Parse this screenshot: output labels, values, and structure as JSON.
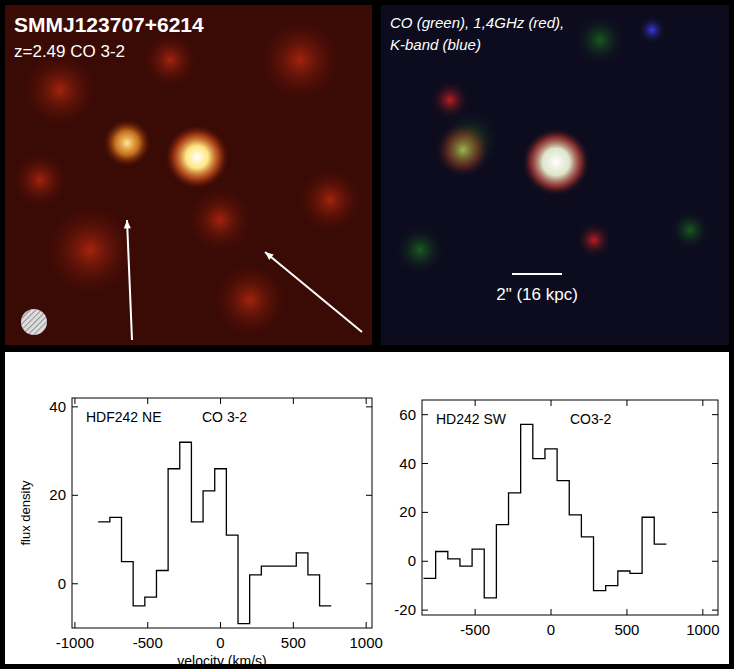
{
  "images": {
    "left": {
      "title": "SMMJ123707+6214",
      "subtitle": "z=2.49 CO 3-2"
    },
    "right": {
      "title": "CO (green), 1,4GHz (red),",
      "subtitle": "K-band (blue)",
      "scale_label": "2\" (16 kpc)"
    }
  },
  "chart_data": [
    {
      "type": "line",
      "line_style": "steps",
      "title": "HDF242 NE",
      "subtitle": "CO 3-2",
      "xlabel": "velocity (km/s)",
      "ylabel": "flux density",
      "x": [
        -800,
        -720,
        -640,
        -560,
        -480,
        -400,
        -320,
        -240,
        -160,
        -80,
        0,
        80,
        160,
        240,
        320,
        400,
        480,
        560,
        640,
        720
      ],
      "values": [
        14,
        15,
        5,
        -5,
        -3,
        3,
        26,
        32,
        14,
        21,
        26,
        11,
        -9,
        2,
        4,
        4,
        4,
        7,
        2,
        -5
      ],
      "color": "#000000",
      "xlim": [
        -1020,
        1040
      ],
      "xticks": [
        -1000,
        -500,
        0,
        500,
        1000
      ],
      "ylim": [
        -10,
        42
      ],
      "yticks": [
        0,
        20,
        40
      ]
    },
    {
      "type": "line",
      "line_style": "steps",
      "title": "HD242 SW",
      "subtitle": "CO3-2",
      "x": [
        -800,
        -720,
        -640,
        -560,
        -480,
        -400,
        -320,
        -240,
        -160,
        -80,
        0,
        80,
        160,
        240,
        320,
        400,
        480,
        560,
        640,
        720
      ],
      "values": [
        -7,
        4,
        1,
        -2,
        5,
        -15,
        15,
        28,
        56,
        42,
        46,
        33,
        19,
        10,
        -12,
        -10,
        -4,
        -5,
        18,
        7
      ],
      "color": "#000000",
      "xlim": [
        -850,
        1100
      ],
      "xticks": [
        -500,
        0,
        500,
        1000
      ],
      "ylim": [
        -22,
        66
      ],
      "yticks": [
        -20,
        0,
        20,
        40,
        60
      ]
    }
  ]
}
